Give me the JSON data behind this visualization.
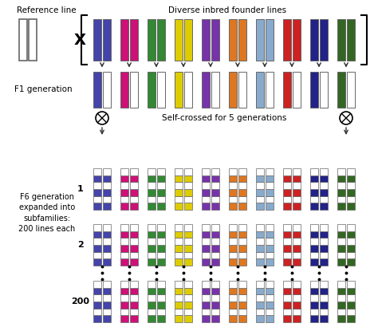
{
  "founder_colors": [
    "#4444aa",
    "#cc1177",
    "#338833",
    "#ddcc00",
    "#7733aa",
    "#dd7722",
    "#88aacc",
    "#cc2222",
    "#222288",
    "#336622"
  ],
  "title_ref": "Reference line",
  "title_diverse": "Diverse inbred founder lines",
  "label_f1": "F1 generation",
  "label_f6": "F6 generation\nexpanded into\nsubfamilies:\n200 lines each",
  "label_self": "Self-crossed for 5 generations",
  "bg_color": "#ffffff",
  "n_founders": 10,
  "fig_width": 4.74,
  "fig_height": 4.2,
  "dpi": 100
}
